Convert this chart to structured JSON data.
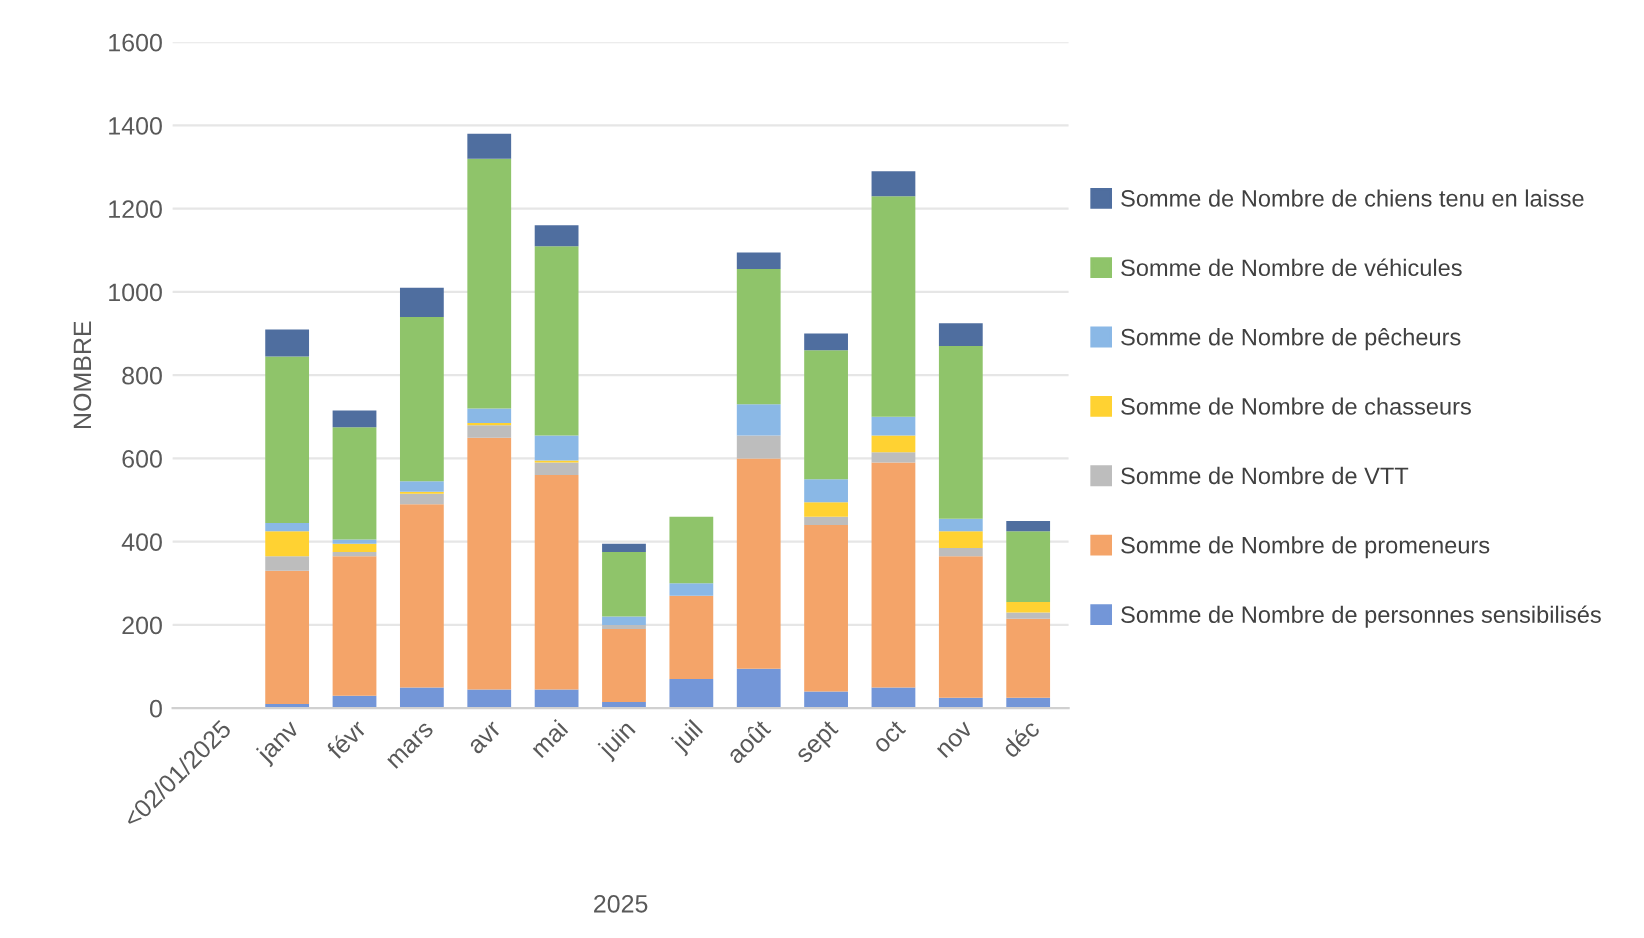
{
  "chart_data": {
    "type": "bar",
    "stacked": true,
    "xlabel": "2025",
    "ylabel": "NOMBRE",
    "categories": [
      "<02/01/2025",
      "janv",
      "févr",
      "mars",
      "avr",
      "mai",
      "juin",
      "juil",
      "août",
      "sept",
      "oct",
      "nov",
      "déc"
    ],
    "series": [
      {
        "name": "Somme de Nombre de personnes sensibilisés",
        "color": "#7396d8",
        "values": [
          null,
          10,
          30,
          50,
          45,
          45,
          15,
          70,
          95,
          40,
          50,
          25,
          25
        ]
      },
      {
        "name": "Somme de Nombre de promeneurs",
        "color": "#f4a469",
        "values": [
          null,
          320,
          335,
          440,
          605,
          515,
          175,
          200,
          505,
          400,
          540,
          340,
          190
        ]
      },
      {
        "name": "Somme de Nombre de VTT",
        "color": "#bdbdbd",
        "values": [
          null,
          35,
          10,
          25,
          30,
          30,
          10,
          0,
          55,
          20,
          25,
          20,
          15
        ]
      },
      {
        "name": "Somme de Nombre de chasseurs",
        "color": "#ffd232",
        "values": [
          null,
          60,
          20,
          5,
          5,
          5,
          0,
          0,
          0,
          35,
          40,
          40,
          25
        ]
      },
      {
        "name": "Somme de Nombre de pêcheurs",
        "color": "#8ab8e6",
        "values": [
          null,
          20,
          10,
          25,
          35,
          60,
          20,
          30,
          75,
          55,
          45,
          30,
          0
        ]
      },
      {
        "name": "Somme de Nombre de véhicules",
        "color": "#8fc46a",
        "values": [
          null,
          400,
          270,
          395,
          600,
          455,
          155,
          160,
          325,
          310,
          530,
          415,
          170
        ]
      },
      {
        "name": "Somme de Nombre de chiens tenu en laisse",
        "color": "#4f6e9f",
        "values": [
          null,
          65,
          40,
          70,
          60,
          50,
          20,
          0,
          40,
          40,
          60,
          55,
          25
        ]
      }
    ],
    "ylim": [
      0,
      1600
    ],
    "yticks": [
      0,
      200,
      400,
      600,
      800,
      1000,
      1200,
      1400,
      1600
    ],
    "grid": "y",
    "legend": "right"
  }
}
